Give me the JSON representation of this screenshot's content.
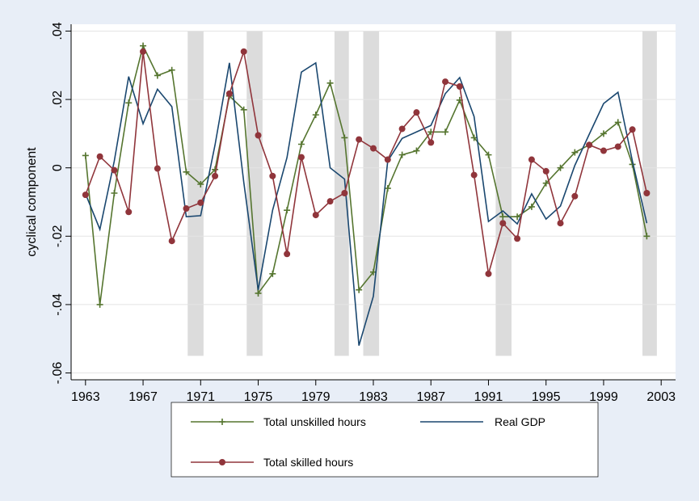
{
  "chart_data": {
    "type": "line",
    "ylabel": "cyclical component",
    "x": [
      1963,
      1964,
      1965,
      1966,
      1967,
      1968,
      1969,
      1970,
      1971,
      1972,
      1973,
      1974,
      1975,
      1976,
      1977,
      1978,
      1979,
      1980,
      1981,
      1982,
      1983,
      1984,
      1985,
      1986,
      1987,
      1988,
      1989,
      1990,
      1991,
      1992,
      1993,
      1994,
      1995,
      1996,
      1997,
      1998,
      1999,
      2000,
      2001,
      2002
    ],
    "series": [
      {
        "name": "Total unskilled hours",
        "color": "#55752f",
        "marker": "plus",
        "values": [
          0.0036,
          -0.04,
          -0.0074,
          0.019,
          0.0357,
          0.027,
          0.0286,
          -0.0012,
          -0.0048,
          -0.0005,
          0.021,
          0.017,
          -0.0367,
          -0.031,
          -0.0124,
          0.0069,
          0.0155,
          0.0248,
          0.0088,
          -0.0357,
          -0.0305,
          -0.006,
          0.0038,
          0.005,
          0.0105,
          0.0105,
          0.0198,
          0.0088,
          0.0038,
          -0.0143,
          -0.0143,
          -0.0114,
          -0.0045,
          0,
          0.0045,
          0.0067,
          0.01,
          0.0133,
          0.001,
          -0.02
        ]
      },
      {
        "name": "Real GDP",
        "color": "#1a476f",
        "marker": "none",
        "values": [
          -0.0076,
          -0.018,
          0.002,
          0.0267,
          0.0129,
          0.023,
          0.0179,
          -0.0143,
          -0.014,
          0.0067,
          0.0307,
          -0.0043,
          -0.0357,
          -0.0124,
          0.003,
          0.028,
          0.0307,
          0,
          -0.0033,
          -0.052,
          -0.0376,
          0.002,
          0.0086,
          0.0105,
          0.0124,
          0.0217,
          0.0264,
          0.015,
          -0.0157,
          -0.0126,
          -0.0164,
          -0.0076,
          -0.015,
          -0.0112,
          0.0007,
          0.0098,
          0.0188,
          0.0221,
          0.002,
          -0.0162
        ]
      },
      {
        "name": "Total skilled hours",
        "color": "#90353b",
        "marker": "circle",
        "values": [
          -0.0079,
          0.0033,
          -0.0007,
          -0.0129,
          0.034,
          -0.0002,
          -0.0214,
          -0.0119,
          -0.0102,
          -0.0024,
          0.0217,
          0.034,
          0.0095,
          -0.0024,
          -0.0252,
          0.0031,
          -0.0138,
          -0.0098,
          -0.0074,
          0.0083,
          0.0057,
          0.0024,
          0.0114,
          0.0162,
          0.0074,
          0.0252,
          0.0238,
          -0.0021,
          -0.031,
          -0.0162,
          -0.0207,
          0.0024,
          -0.001,
          -0.0162,
          -0.0083,
          0.0067,
          0.005,
          0.0062,
          0.0112,
          -0.0074
        ]
      }
    ],
    "shaded_x": [
      [
        1970.1,
        1971.2
      ],
      [
        1974.2,
        1975.3
      ],
      [
        1980.3,
        1981.3
      ],
      [
        1982.3,
        1983.4
      ],
      [
        1991.5,
        1992.6
      ],
      [
        2001.7,
        2002.7
      ]
    ],
    "shaded_ylim": [
      -0.055,
      0.04
    ],
    "shade_color": "#dcdcdc",
    "xlim": [
      1962,
      2004
    ],
    "ylim": [
      -0.062,
      0.042
    ],
    "xticks": [
      1963,
      1967,
      1971,
      1975,
      1979,
      1983,
      1987,
      1991,
      1995,
      1999,
      2003
    ],
    "yticks": [
      {
        "value": -0.06,
        "label": "-.06"
      },
      {
        "value": -0.04,
        "label": "-.04"
      },
      {
        "value": -0.02,
        "label": "-.02"
      },
      0,
      {
        "value": 0.02,
        "label": ".02"
      },
      {
        "value": 0.04,
        "label": ".04"
      }
    ],
    "grid": true
  }
}
